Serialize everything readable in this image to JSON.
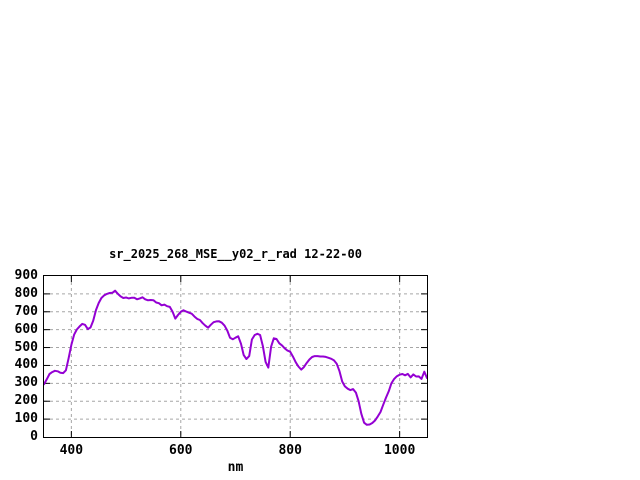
{
  "window": {
    "background": "#ffffff"
  },
  "chart_data": {
    "type": "line",
    "title": "sr_2025_268_MSE__y02_r_rad 12-22-00",
    "xlabel": "nm",
    "ylabel": "",
    "xlim": [
      350,
      1050
    ],
    "ylim": [
      0,
      900
    ],
    "x_ticks": [
      400,
      600,
      800,
      1000
    ],
    "y_ticks": [
      0,
      100,
      200,
      300,
      400,
      500,
      600,
      700,
      800,
      900
    ],
    "grid": true,
    "grid_style": "dashed",
    "legend_position": "none",
    "line_color": "#9400d3",
    "grid_color": "#a6a6a6",
    "border_color": "#000000",
    "series": [
      {
        "name": "sr_2025_268_MSE__y02_r_rad",
        "x": [
          350,
          355,
          360,
          365,
          370,
          375,
          380,
          385,
          390,
          395,
          400,
          405,
          410,
          415,
          420,
          425,
          430,
          435,
          440,
          445,
          450,
          455,
          460,
          465,
          470,
          475,
          480,
          485,
          490,
          495,
          500,
          505,
          510,
          515,
          520,
          525,
          530,
          535,
          540,
          545,
          550,
          555,
          560,
          565,
          570,
          575,
          580,
          585,
          590,
          595,
          600,
          605,
          610,
          615,
          620,
          625,
          630,
          635,
          640,
          645,
          650,
          655,
          660,
          665,
          670,
          675,
          680,
          685,
          690,
          695,
          700,
          705,
          710,
          715,
          720,
          725,
          730,
          735,
          740,
          745,
          750,
          755,
          760,
          765,
          770,
          775,
          780,
          785,
          790,
          795,
          800,
          805,
          810,
          815,
          820,
          825,
          830,
          835,
          840,
          845,
          850,
          855,
          860,
          865,
          870,
          875,
          880,
          885,
          890,
          895,
          900,
          905,
          910,
          915,
          920,
          925,
          930,
          935,
          940,
          945,
          950,
          955,
          960,
          965,
          970,
          975,
          980,
          985,
          990,
          995,
          1000,
          1005,
          1010,
          1015,
          1020,
          1025,
          1030,
          1035,
          1040,
          1045,
          1050
        ],
        "y": [
          295,
          322,
          352,
          363,
          370,
          367,
          359,
          357,
          373,
          440,
          516,
          572,
          601,
          618,
          632,
          627,
          603,
          612,
          650,
          710,
          749,
          777,
          792,
          800,
          805,
          806,
          818,
          800,
          786,
          777,
          780,
          775,
          778,
          778,
          770,
          775,
          781,
          770,
          764,
          766,
          765,
          752,
          748,
          736,
          740,
          731,
          727,
          700,
          662,
          682,
          700,
          708,
          701,
          695,
          689,
          673,
          660,
          654,
          636,
          622,
          611,
          628,
          642,
          646,
          647,
          639,
          622,
          595,
          555,
          546,
          555,
          563,
          521,
          458,
          436,
          452,
          545,
          570,
          577,
          570,
          507,
          420,
          388,
          505,
          552,
          548,
          524,
          512,
          496,
          483,
          477,
          449,
          418,
          394,
          377,
          391,
          413,
          433,
          447,
          452,
          452,
          450,
          450,
          448,
          443,
          437,
          428,
          410,
          368,
          310,
          283,
          270,
          262,
          268,
          248,
          200,
          130,
          80,
          68,
          70,
          78,
          92,
          115,
          140,
          180,
          220,
          255,
          300,
          325,
          340,
          348,
          352,
          345,
          353,
          333,
          350,
          338,
          339,
          325,
          365,
          330
        ]
      }
    ]
  }
}
